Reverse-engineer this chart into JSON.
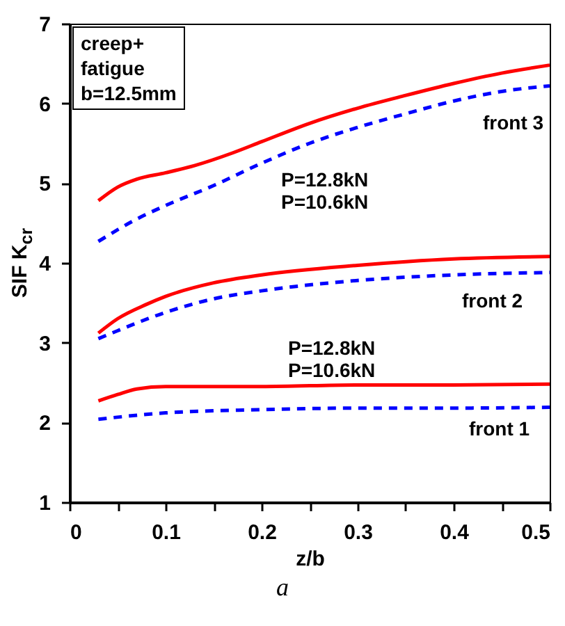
{
  "chart_data": {
    "type": "line",
    "xlabel": "z/b",
    "ylabel": "SIF K$_{cr}$",
    "xlim": [
      0,
      0.5
    ],
    "ylim": [
      1,
      7
    ],
    "xticks": [
      0,
      {
        "value": 0.05,
        "label": null
      },
      0.1,
      {
        "value": 0.15,
        "label": null
      },
      0.2,
      {
        "value": 0.25,
        "label": null
      },
      0.3,
      {
        "value": 0.35,
        "label": null
      },
      0.4,
      {
        "value": 0.45,
        "label": null
      },
      0.5
    ],
    "yticks": [
      1,
      2,
      3,
      4,
      5,
      6,
      7
    ],
    "grid": false,
    "series": [
      {
        "color": "#ff0000",
        "line_style": "solid",
        "x": [
          0.03,
          0.05,
          0.07,
          0.1,
          0.13,
          0.17,
          0.2,
          0.25,
          0.3,
          0.35,
          0.4,
          0.45,
          0.5
        ],
        "values": [
          4.78,
          4.95,
          5.05,
          5.13,
          5.22,
          5.38,
          5.52,
          5.75,
          5.94,
          6.1,
          6.25,
          6.38,
          6.48
        ]
      },
      {
        "color": "#0000ff",
        "line_style": "dashed",
        "x": [
          0.03,
          0.07,
          0.1,
          0.15,
          0.2,
          0.25,
          0.3,
          0.35,
          0.4,
          0.45,
          0.5
        ],
        "values": [
          4.27,
          4.55,
          4.72,
          4.97,
          5.25,
          5.5,
          5.7,
          5.87,
          6.03,
          6.15,
          6.22
        ]
      },
      {
        "color": "#ff0000",
        "line_style": "solid",
        "x": [
          0.03,
          0.05,
          0.08,
          0.1,
          0.15,
          0.2,
          0.3,
          0.4,
          0.5
        ],
        "values": [
          3.12,
          3.3,
          3.48,
          3.58,
          3.75,
          3.85,
          3.97,
          4.05,
          4.08
        ]
      },
      {
        "color": "#0000ff",
        "line_style": "dashed",
        "x": [
          0.03,
          0.05,
          0.1,
          0.15,
          0.2,
          0.3,
          0.4,
          0.5
        ],
        "values": [
          3.05,
          3.15,
          3.38,
          3.55,
          3.65,
          3.78,
          3.85,
          3.88
        ]
      },
      {
        "color": "#ff0000",
        "line_style": "solid",
        "x": [
          0.03,
          0.05,
          0.07,
          0.1,
          0.2,
          0.3,
          0.4,
          0.5
        ],
        "values": [
          2.27,
          2.35,
          2.42,
          2.45,
          2.45,
          2.47,
          2.47,
          2.48
        ]
      },
      {
        "color": "#0000ff",
        "line_style": "dashed",
        "x": [
          0.03,
          0.1,
          0.2,
          0.3,
          0.4,
          0.5
        ],
        "values": [
          2.04,
          2.12,
          2.16,
          2.18,
          2.18,
          2.19
        ]
      }
    ],
    "annotations": [
      "creep+",
      "fatigue",
      "b=12.5mm",
      "front 3",
      "P=12.8kN",
      "P=10.6kN",
      "front 2",
      "P=12.8kN",
      "P=10.6kN",
      "front 1",
      "a"
    ]
  }
}
